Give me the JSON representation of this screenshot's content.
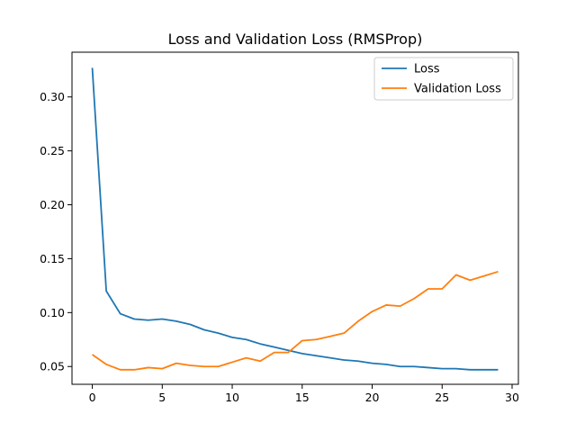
{
  "chart_data": {
    "type": "line",
    "title": "Loss and Validation Loss (RMSProp)",
    "xlabel": "",
    "ylabel": "",
    "xlim": [
      -1.45,
      30.45
    ],
    "ylim": [
      0.0335,
      0.3415
    ],
    "xticks": [
      0,
      5,
      10,
      15,
      20,
      25,
      30
    ],
    "xtick_labels": [
      "0",
      "5",
      "10",
      "15",
      "20",
      "25",
      "30"
    ],
    "yticks": [
      0.05,
      0.1,
      0.15,
      0.2,
      0.25,
      0.3
    ],
    "ytick_labels": [
      "0.05",
      "0.10",
      "0.15",
      "0.20",
      "0.25",
      "0.30"
    ],
    "grid": false,
    "legend_position": "top-right",
    "x": [
      0,
      1,
      2,
      3,
      4,
      5,
      6,
      7,
      8,
      9,
      10,
      11,
      12,
      13,
      14,
      15,
      16,
      17,
      18,
      19,
      20,
      21,
      22,
      23,
      24,
      25,
      26,
      27,
      28,
      29
    ],
    "series": [
      {
        "name": "Loss",
        "color": "#1f77b4",
        "values": [
          0.327,
          0.12,
          0.099,
          0.094,
          0.093,
          0.094,
          0.092,
          0.089,
          0.084,
          0.081,
          0.077,
          0.075,
          0.071,
          0.068,
          0.065,
          0.062,
          0.06,
          0.058,
          0.056,
          0.055,
          0.053,
          0.052,
          0.05,
          0.05,
          0.049,
          0.048,
          0.048,
          0.047,
          0.047,
          0.047
        ]
      },
      {
        "name": "Validation Loss",
        "color": "#ff7f0e",
        "values": [
          0.061,
          0.052,
          0.047,
          0.047,
          0.049,
          0.048,
          0.053,
          0.051,
          0.05,
          0.05,
          0.054,
          0.058,
          0.055,
          0.063,
          0.063,
          0.074,
          0.075,
          0.078,
          0.081,
          0.092,
          0.101,
          0.107,
          0.106,
          0.113,
          0.122,
          0.122,
          0.135,
          0.13,
          0.134,
          0.138
        ]
      }
    ]
  }
}
